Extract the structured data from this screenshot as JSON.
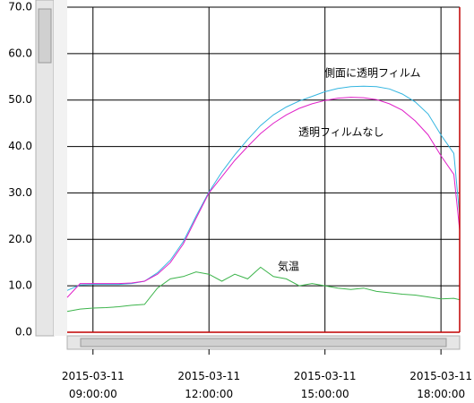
{
  "chart_data": {
    "type": "line",
    "x": [
      "2015-03-11 08:20",
      "2015-03-11 08:40",
      "2015-03-11 09:00",
      "2015-03-11 09:20",
      "2015-03-11 09:40",
      "2015-03-11 10:00",
      "2015-03-11 10:20",
      "2015-03-11 10:40",
      "2015-03-11 11:00",
      "2015-03-11 11:20",
      "2015-03-11 11:40",
      "2015-03-11 12:00",
      "2015-03-11 12:20",
      "2015-03-11 12:40",
      "2015-03-11 13:00",
      "2015-03-11 13:20",
      "2015-03-11 13:40",
      "2015-03-11 14:00",
      "2015-03-11 14:20",
      "2015-03-11 14:40",
      "2015-03-11 15:00",
      "2015-03-11 15:20",
      "2015-03-11 15:40",
      "2015-03-11 16:00",
      "2015-03-11 16:20",
      "2015-03-11 16:40",
      "2015-03-11 17:00",
      "2015-03-11 17:20",
      "2015-03-11 17:40",
      "2015-03-11 18:00",
      "2015-03-11 18:20",
      "2015-03-11 18:29"
    ],
    "series": [
      {
        "name": "側面に透明フィルム",
        "color": "#33b5e0",
        "values": [
          9,
          10.2,
          10.3,
          10.3,
          10.3,
          10.5,
          11,
          12.8,
          15.5,
          19.5,
          25,
          30.2,
          34.5,
          38.2,
          41.5,
          44.5,
          46.8,
          48.5,
          49.8,
          50.8,
          51.8,
          52.5,
          52.9,
          53,
          52.9,
          52.4,
          51.3,
          49.6,
          47,
          42.5,
          38.5,
          25
        ]
      },
      {
        "name": "透明フィルムなし",
        "color": "#e020c8",
        "values": [
          7.5,
          10.5,
          10.5,
          10.5,
          10.5,
          10.6,
          11,
          12.5,
          15,
          19,
          24.5,
          30,
          33.5,
          37,
          40,
          42.8,
          45,
          46.8,
          48.2,
          49.2,
          49.9,
          50.4,
          50.6,
          50.5,
          50.1,
          49.2,
          47.8,
          45.5,
          42.5,
          38,
          34,
          22
        ]
      },
      {
        "name": "気温",
        "color": "#3cb44b",
        "values": [
          4.5,
          5,
          5.2,
          5.3,
          5.5,
          5.8,
          6,
          9.5,
          11.5,
          12,
          13,
          12.5,
          11,
          12.5,
          11.5,
          14,
          12,
          11.5,
          10,
          10.5,
          10,
          9.5,
          9.2,
          9.5,
          8.8,
          8.5,
          8.2,
          8,
          7.6,
          7.2,
          7.3,
          7
        ]
      }
    ],
    "xlim": [
      "2015-03-11 08:20",
      "2015-03-11 18:29"
    ],
    "xticks": [
      {
        "value": "2015-03-11 09:00",
        "label": "2015-03-11 09:00:00"
      },
      {
        "value": "2015-03-11 12:00",
        "label": "2015-03-11 12:00:00"
      },
      {
        "value": "2015-03-11 15:00",
        "label": "2015-03-11 15:00:00"
      },
      {
        "value": "2015-03-11 18:00",
        "label": "2015-03-11 18:00:00"
      }
    ],
    "ylim": [
      0,
      70
    ],
    "yticks": [
      {
        "value": 0,
        "label": "0.0"
      },
      {
        "value": 10,
        "label": "10.0"
      },
      {
        "value": 20,
        "label": "20.0"
      },
      {
        "value": 30,
        "label": "30.0"
      },
      {
        "value": 40,
        "label": "40.0"
      },
      {
        "value": 50,
        "label": "50.0"
      },
      {
        "value": 60,
        "label": "60.0"
      },
      {
        "value": 70,
        "label": "70.0"
      }
    ],
    "grid": true
  }
}
